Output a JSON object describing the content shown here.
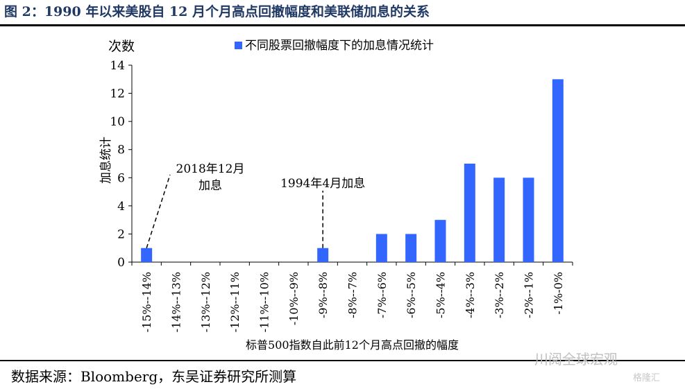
{
  "figure_title": "图 2：1990 年以来美股自 12 月个月高点回撤幅度和美联储加息的关系",
  "source_note": "数据来源：Bloomberg，东吴证券研究所测算",
  "watermark": "川阅全球宏观",
  "watermark2": "格隆汇",
  "colors": {
    "bar": "#3366ff",
    "title": "#1f3864"
  },
  "chart_data": {
    "type": "bar",
    "title": "",
    "categories": [
      "-15%--14%",
      "-14%--13%",
      "-13%--12%",
      "-12%--11%",
      "-11%--10%",
      "-10%--9%",
      "-9%--8%",
      "-8%--7%",
      "-7%--6%",
      "-6%--5%",
      "-5%--4%",
      "-4%--3%",
      "-3%--2%",
      "-2%--1%",
      "-1%-0%"
    ],
    "series": [
      {
        "name": "不同股票回撤幅度下的加息情况统计",
        "values": [
          1,
          0,
          0,
          0,
          0,
          0,
          1,
          0,
          2,
          2,
          3,
          7,
          6,
          6,
          13
        ]
      }
    ],
    "xlabel": "标普500指数自此前12个月高点回撤的幅度",
    "ylabel": "加息统计",
    "y_unit_label": "次数",
    "ylim": [
      0,
      14
    ],
    "yticks": [
      0,
      2,
      4,
      6,
      8,
      10,
      12,
      14
    ],
    "grid": false,
    "legend_position": "top-center",
    "annotations": [
      {
        "text_lines": [
          "2018年12月",
          "加息"
        ],
        "category_index": 0,
        "value": 1
      },
      {
        "text_lines": [
          "1994年4月加息"
        ],
        "category_index": 6,
        "value": 1
      }
    ]
  }
}
